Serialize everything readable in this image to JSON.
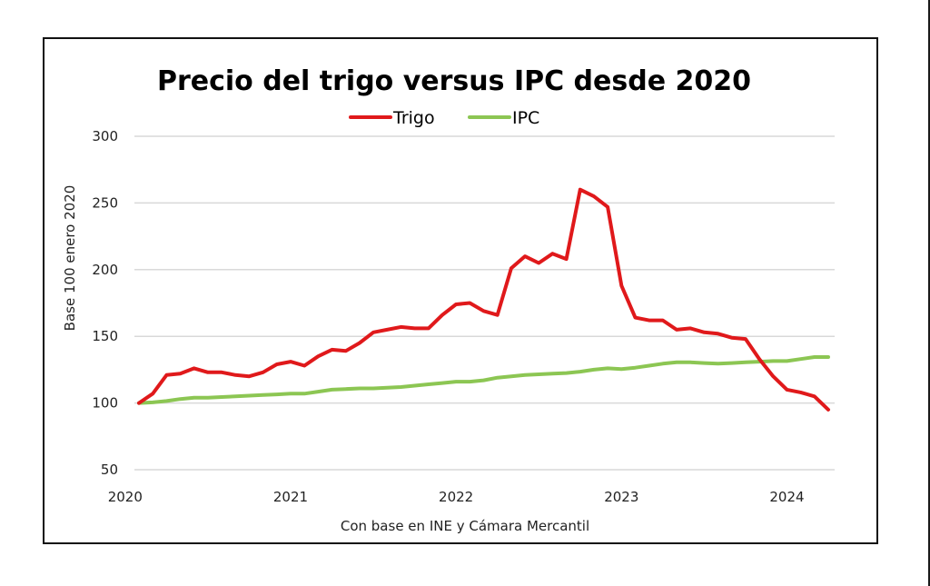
{
  "chart_data": {
    "type": "line",
    "title": "Precio del trigo versus IPC desde 2020",
    "xlabel": "Con base en INE y Cámara Mercantil",
    "ylabel": "Base 100 enero 2020",
    "ylim": [
      50,
      300
    ],
    "yticks": [
      "300",
      "250",
      "200",
      "150",
      "100",
      "50"
    ],
    "ytick_values": [
      300,
      250,
      200,
      150,
      100,
      50
    ],
    "xticks": [
      "2020",
      "2021",
      "2022",
      "2023",
      "2024"
    ],
    "xtick_month_index": [
      -1,
      11,
      23,
      35,
      47
    ],
    "x_start": "2020-02",
    "x_frequency": "monthly",
    "grid": true,
    "legend_position": "top-center",
    "series": [
      {
        "name": "Trigo",
        "color": "#e0191b",
        "values": [
          100,
          107,
          121,
          122,
          126,
          123,
          123,
          121,
          120,
          123,
          129,
          131,
          128,
          135,
          140,
          139,
          145,
          153,
          155,
          157,
          156,
          156,
          166,
          174,
          175,
          169,
          166,
          201,
          210,
          205,
          212,
          208,
          260,
          255,
          247,
          188,
          164,
          162,
          162,
          155,
          156,
          153,
          152,
          149,
          148,
          133,
          120,
          110,
          108,
          105,
          95
        ]
      },
      {
        "name": "IPC",
        "color": "#8cc653",
        "values": [
          100,
          100.5,
          101.5,
          103,
          104,
          104,
          104.5,
          105,
          105.5,
          106,
          106.5,
          107,
          107,
          108.5,
          110,
          110.5,
          111,
          111,
          111.5,
          112,
          113,
          114,
          115,
          116,
          116,
          117,
          119,
          120,
          121,
          121.5,
          122,
          122.5,
          123.5,
          125,
          126,
          125.5,
          126.5,
          128,
          129.5,
          130.5,
          130.5,
          130,
          129.5,
          130,
          130.5,
          131,
          131.5,
          131.5,
          133,
          134.5,
          134.5
        ]
      }
    ]
  }
}
